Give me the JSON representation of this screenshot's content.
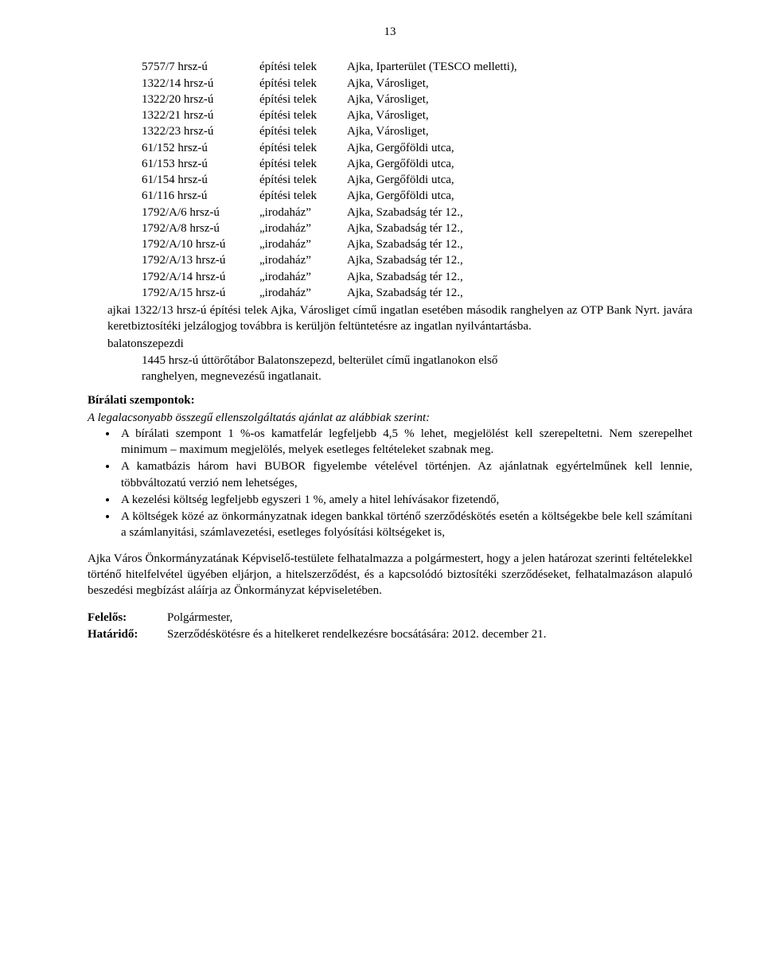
{
  "page_number": "13",
  "rows": [
    {
      "c1": "5757/7 hrsz-ú",
      "c2": "építési telek",
      "c3": "Ajka, Iparterület (TESCO melletti),"
    },
    {
      "c1": "1322/14 hrsz-ú",
      "c2": "építési telek",
      "c3": "Ajka, Városliget,"
    },
    {
      "c1": "1322/20 hrsz-ú",
      "c2": "építési telek",
      "c3": "Ajka, Városliget,"
    },
    {
      "c1": "1322/21 hrsz-ú",
      "c2": "építési telek",
      "c3": "Ajka, Városliget,"
    },
    {
      "c1": "1322/23 hrsz-ú",
      "c2": "építési telek",
      "c3": "Ajka, Városliget,"
    },
    {
      "c1": "61/152 hrsz-ú",
      "c2": "építési telek",
      "c3": "Ajka, Gergőföldi utca,"
    },
    {
      "c1": "61/153 hrsz-ú",
      "c2": "építési telek",
      "c3": "Ajka, Gergőföldi utca,"
    },
    {
      "c1": "61/154 hrsz-ú",
      "c2": "építési telek",
      "c3": "Ajka, Gergőföldi utca,"
    },
    {
      "c1": "61/116 hrsz-ú",
      "c2": "építési telek",
      "c3": "Ajka, Gergőföldi utca,"
    },
    {
      "c1": "1792/A/6 hrsz-ú",
      "c2": "„irodaház”",
      "c3": "Ajka, Szabadság tér 12.,"
    },
    {
      "c1": "1792/A/8 hrsz-ú",
      "c2": "„irodaház”",
      "c3": "Ajka, Szabadság tér 12.,"
    },
    {
      "c1": "1792/A/10 hrsz-ú",
      "c2": "„irodaház”",
      "c3": "Ajka, Szabadság tér 12.,"
    },
    {
      "c1": "1792/A/13 hrsz-ú",
      "c2": "„irodaház”",
      "c3": "Ajka, Szabadság tér 12.,"
    },
    {
      "c1": "1792/A/14 hrsz-ú",
      "c2": "„irodaház”",
      "c3": "Ajka, Szabadság tér 12.,"
    },
    {
      "c1": "1792/A/15 hrsz-ú",
      "c2": "„irodaház”",
      "c3": "Ajka, Szabadság tér 12.,"
    }
  ],
  "ajkai_para": "ajkai 1322/13 hrsz-ú építési telek Ajka, Városliget című ingatlan esetében második ranghelyen az OTP Bank Nyrt. javára keretbiztosítéki jelzálogjog továbbra is kerüljön feltüntetésre az ingatlan nyilvántartásba.",
  "balaton_label": "balatonszepezdi",
  "balaton_line1": "1445 hrsz-ú úttörőtábor Balatonszepezd, belterület című ingatlanokon első",
  "balaton_line2": "ranghelyen, megnevezésű ingatlanait.",
  "biralati_heading": "Bírálati szempontok:",
  "biralati_intro": "A legalacsonyabb összegű ellenszolgáltatás ajánlat az alábbiak szerint:",
  "bullets": [
    "A bírálati szempont 1 %-os kamatfelár legfeljebb 4,5 % lehet, megjelölést kell szerepeltetni. Nem szerepelhet minimum – maximum megjelölés, melyek esetleges feltételeket szabnak meg.",
    "A kamatbázis három havi BUBOR figyelembe vételével történjen. Az ajánlatnak egyértelműnek kell lennie, többváltozatú verzió nem lehetséges,",
    "A kezelési költség legfeljebb egyszeri 1 %, amely a hitel lehívásakor fizetendő,",
    "A költségek közé az önkormányzatnak idegen bankkal történő szerződéskötés esetén a költségekbe bele kell számítani a számlanyitási, számlavezetési, esetleges folyósítási költségeket is,"
  ],
  "body_para": "Ajka Város Önkormányzatának Képviselő-testülete felhatalmazza a polgármestert, hogy a jelen határozat szerinti feltételekkel történő hitelfelvétel ügyében eljárjon, a hitelszerződést, és a kapcsolódó biztosítéki szerződéseket, felhatalmazáson alapuló beszedési megbízást aláírja az Önkormányzat képviseletében.",
  "felelos_label": "Felelős:",
  "felelos_value": "Polgármester,",
  "hatarido_label": "Határidő:",
  "hatarido_value": "Szerződéskötésre és a hitelkeret rendelkezésre bocsátására: 2012. december 21."
}
